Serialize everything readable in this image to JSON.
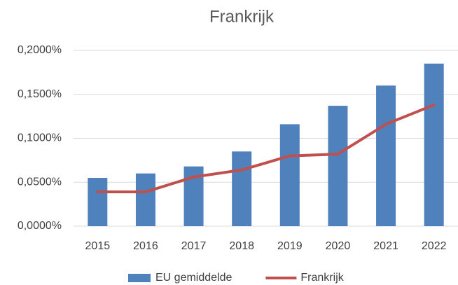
{
  "chart_data": {
    "type": "combo",
    "title": "Frankrijk",
    "categories": [
      "2015",
      "2016",
      "2017",
      "2018",
      "2019",
      "2020",
      "2021",
      "2022"
    ],
    "series": [
      {
        "name": "EU gemiddelde",
        "type": "bar",
        "color": "#4f81bd",
        "values": [
          0.055,
          0.06,
          0.068,
          0.085,
          0.116,
          0.137,
          0.16,
          0.185
        ]
      },
      {
        "name": "Frankrijk",
        "type": "line",
        "color": "#c0504d",
        "values": [
          0.039,
          0.039,
          0.056,
          0.064,
          0.08,
          0.082,
          0.116,
          0.138
        ]
      }
    ],
    "ylim": [
      0,
      0.2
    ],
    "yticks": [
      {
        "value": 0,
        "label": "0,0000%"
      },
      {
        "value": 0.05,
        "label": "0,0500%"
      },
      {
        "value": 0.1,
        "label": "0,1000%"
      },
      {
        "value": 0.15,
        "label": "0,1500%"
      },
      {
        "value": 0.2,
        "label": "0,2000%"
      }
    ],
    "grid": true,
    "legend": "bottom"
  }
}
